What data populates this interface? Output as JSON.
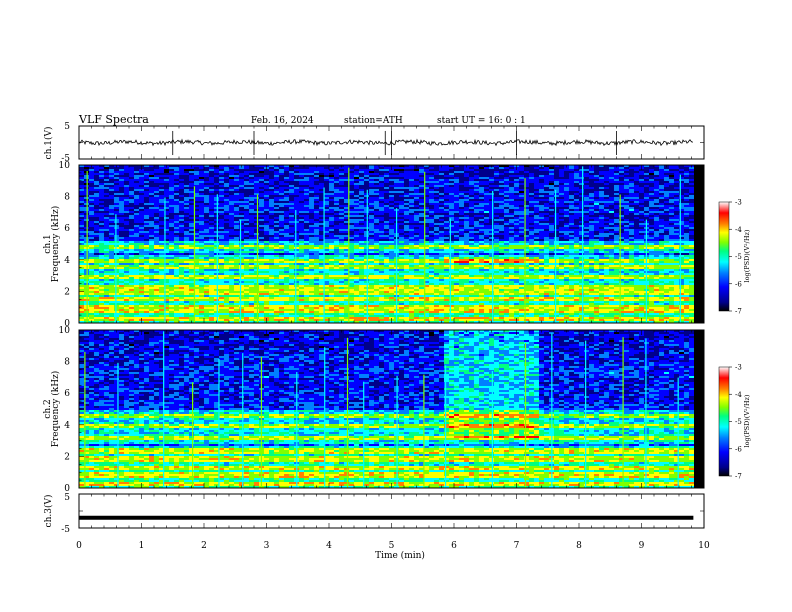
{
  "header": {
    "title": "VLF  Spectra",
    "date": "Feb. 16, 2024",
    "station": "station=ATH",
    "start_ut": "start  UT  =   16: 0  : 1"
  },
  "chart_data": [
    {
      "type": "line",
      "panel": "ch1-waveform",
      "ylabel": "ch.1(V)",
      "ylim": [
        -5,
        5
      ],
      "y_ticks": [
        "5",
        "-5"
      ],
      "xlim": [
        0,
        10
      ],
      "baseline_v": 0.0,
      "noise_amplitude_v": 0.8,
      "spikes_at_min": [
        1.5,
        2.8,
        4.9,
        5.0,
        7.0,
        8.6
      ]
    },
    {
      "type": "heatmap",
      "panel": "ch1-spectrogram",
      "ylabel": [
        "ch.1",
        "Frequency (kHz)"
      ],
      "ylim": [
        0,
        10
      ],
      "y_ticks": [
        "0",
        "2",
        "4",
        "6",
        "8",
        "10"
      ],
      "xlim": [
        0,
        9.83
      ],
      "colorbar": {
        "label": "log(PSD)(V²/Hz)",
        "range": [
          -7,
          -3
        ],
        "ticks": [
          "-3",
          "-4",
          "-5",
          "-6",
          "-7"
        ]
      },
      "strong_bands_khz": [
        0.3,
        0.8,
        1.1,
        1.6,
        2.0,
        2.3,
        3.0,
        3.6,
        4.0,
        4.9
      ],
      "enhanced_interval_min": [
        5.8,
        7.3
      ],
      "enhanced_band_khz": [
        3.8,
        4.3
      ],
      "sferic_times_min": [
        0.1,
        0.6,
        1.4,
        1.8,
        2.2,
        2.6,
        2.9,
        3.5,
        3.9,
        4.3,
        4.6,
        5.1,
        5.5,
        5.9,
        6.6,
        7.1,
        7.6,
        8.1,
        8.7,
        9.1,
        9.6
      ]
    },
    {
      "type": "heatmap",
      "panel": "ch2-spectrogram",
      "ylabel": [
        "ch.2",
        "Frequency (kHz)"
      ],
      "ylim": [
        0,
        10
      ],
      "y_ticks": [
        "0",
        "2",
        "4",
        "6",
        "8",
        "10"
      ],
      "xlim": [
        0,
        9.83
      ],
      "colorbar": {
        "label": "log(PSD)(V²/Hz)",
        "range": [
          -7,
          -3
        ],
        "ticks": [
          "-3",
          "-4",
          "-5",
          "-6",
          "-7"
        ]
      },
      "strong_bands_khz": [
        0.3,
        0.9,
        1.3,
        1.8,
        2.0,
        2.4,
        3.2,
        4.0,
        4.6
      ],
      "enhanced_interval_min": [
        5.8,
        7.3
      ],
      "enhanced_band_khz": [
        3.2,
        10
      ],
      "sferic_times_min": [
        0.1,
        0.6,
        1.4,
        1.8,
        2.2,
        2.6,
        2.9,
        3.5,
        3.9,
        4.3,
        4.6,
        5.1,
        5.5,
        5.9,
        6.6,
        7.1,
        7.6,
        8.1,
        8.7,
        9.1,
        9.6
      ]
    },
    {
      "type": "line",
      "panel": "ch3-waveform",
      "ylabel": "ch.3(V)",
      "ylim": [
        -5,
        5
      ],
      "y_ticks": [
        "5",
        "-5"
      ],
      "xlim": [
        0,
        10
      ],
      "baseline_v": -2.0,
      "xlabel": "Time  (min)",
      "x_ticks": [
        "0",
        "1",
        "2",
        "3",
        "4",
        "5",
        "6",
        "7",
        "8",
        "9",
        "10"
      ]
    }
  ],
  "colors": {
    "frame": "#000000",
    "colormap": [
      "#000000",
      "#00008b",
      "#0000ff",
      "#0080ff",
      "#00ffff",
      "#00ff80",
      "#80ff00",
      "#ffff00",
      "#ff8000",
      "#ff0000",
      "#ffffff"
    ]
  }
}
